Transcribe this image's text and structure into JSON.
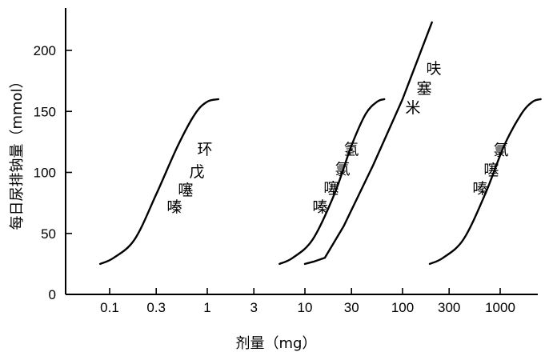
{
  "chart_data": {
    "type": "line",
    "title": "",
    "xlabel": "剂量（mg）",
    "ylabel": "每日尿排钠量（mmol）",
    "x_scale": "log",
    "x_ticks": [
      "0.1",
      "0.3",
      "1",
      "3",
      "10",
      "30",
      "100",
      "300",
      "1000"
    ],
    "y_ticks": [
      "0",
      "50",
      "100",
      "150",
      "200"
    ],
    "ylim": [
      0,
      230
    ],
    "series": [
      {
        "name": "环戊噻嗪",
        "label_chars": [
          "环",
          "戊",
          "噻",
          "嗪"
        ],
        "x": [
          0.08,
          0.11,
          0.18,
          0.3,
          0.5,
          0.75,
          1.0,
          1.3
        ],
        "y": [
          25,
          30,
          45,
          82,
          122,
          148,
          158,
          160
        ]
      },
      {
        "name": "氢氯噻嗪",
        "label_chars": [
          "氢",
          "氯",
          "噻",
          "嗪"
        ],
        "x": [
          5.5,
          7.5,
          12,
          20,
          30,
          42,
          55,
          65
        ],
        "y": [
          25,
          30,
          45,
          82,
          122,
          148,
          158,
          160
        ]
      },
      {
        "name": "呋塞米",
        "label_chars": [
          "呋",
          "塞",
          "米"
        ],
        "x": [
          10,
          12.5,
          16,
          25,
          50,
          100,
          200
        ],
        "y": [
          25,
          27,
          30,
          56,
          106,
          160,
          223
        ]
      },
      {
        "name": "氯噻嗪",
        "label_chars": [
          "氯",
          "噻",
          "嗪"
        ],
        "x": [
          190,
          260,
          420,
          700,
          1100,
          1650,
          2150,
          2600
        ],
        "y": [
          25,
          30,
          45,
          82,
          122,
          148,
          158,
          160
        ]
      }
    ]
  }
}
